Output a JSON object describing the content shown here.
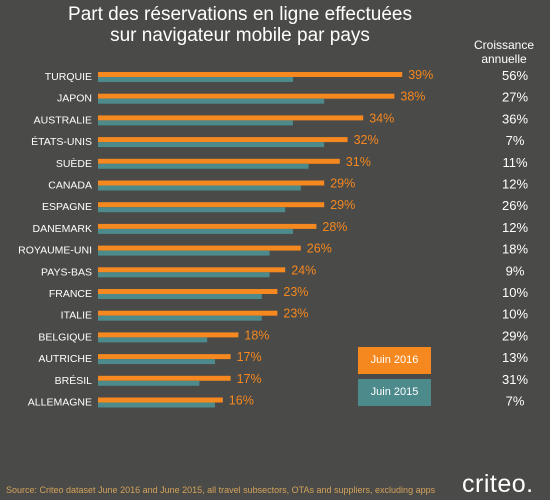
{
  "title_line1": "Part des réservations en ligne effectuées",
  "title_line2": "sur navigateur mobile par pays",
  "growth_header_line1": "Croissance",
  "growth_header_line2": "annuelle",
  "source": "Source: Criteo dataset June 2016 and June 2015, all travel subsectors, OTAs and suppliers, excluding apps",
  "logo_text": "criteo.",
  "colors": {
    "background": "#4a4a48",
    "juin_2016": "#f5881f",
    "juin_2015": "#4d8a8c",
    "text": "#ffffff",
    "source": "#d4a35c"
  },
  "chart_data": {
    "type": "bar",
    "orientation": "horizontal",
    "categories": [
      "TURQUIE",
      "JAPON",
      "AUSTRALIE",
      "ÉTATS-UNIS",
      "SUÈDE",
      "CANADA",
      "ESPAGNE",
      "DANEMARK",
      "ROYAUME-UNI",
      "PAYS-BAS",
      "FRANCE",
      "ITALIE",
      "BELGIQUE",
      "AUTRICHE",
      "BRÉSIL",
      "ALLEMAGNE"
    ],
    "series": [
      {
        "name": "Juin 2016",
        "values": [
          39,
          38,
          34,
          32,
          31,
          29,
          29,
          28,
          26,
          24,
          23,
          23,
          18,
          17,
          17,
          16
        ],
        "labels": [
          "39%",
          "38%",
          "34%",
          "32%",
          "31%",
          "29%",
          "29%",
          "28%",
          "26%",
          "24%",
          "23%",
          "23%",
          "18%",
          "17%",
          "17%",
          "16%"
        ]
      },
      {
        "name": "Juin 2015",
        "values": [
          25,
          29,
          25,
          29,
          27,
          26,
          24,
          25,
          22,
          22,
          21,
          21,
          14,
          15,
          13,
          15
        ]
      }
    ],
    "annual_growth": [
      "56%",
      "27%",
      "36%",
      "7%",
      "11%",
      "12%",
      "26%",
      "12%",
      "18%",
      "9%",
      "10%",
      "10%",
      "29%",
      "13%",
      "31%",
      "7%"
    ],
    "legend_position": "bottom-right",
    "grid": false
  }
}
